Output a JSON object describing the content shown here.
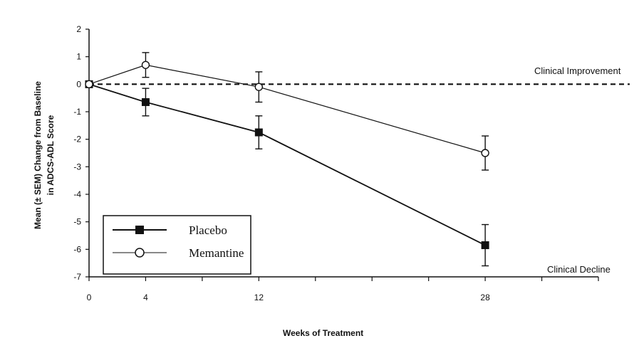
{
  "chart_data": {
    "type": "line",
    "xlabel": "Weeks of Treatment",
    "ylabel_line1": "Mean (± SEM) Change from Baseline",
    "ylabel_line2": "in ADCS-ADL Score",
    "x_ticks": [
      0,
      4,
      12,
      28
    ],
    "x_minor_ticks": [
      0,
      4,
      8,
      12,
      16,
      20,
      24,
      28,
      32,
      36
    ],
    "xlim": [
      0,
      36
    ],
    "ylim": [
      -7,
      2
    ],
    "y_ticks": [
      2,
      1,
      0,
      -1,
      -2,
      -3,
      -4,
      -5,
      -6,
      -7
    ],
    "series": [
      {
        "name": "Placebo",
        "marker": "filled-square",
        "x": [
          0,
          4,
          12,
          28
        ],
        "values": [
          0,
          -0.65,
          -1.75,
          -5.85
        ],
        "err": [
          0,
          0.5,
          0.6,
          0.75
        ]
      },
      {
        "name": "Memantine",
        "marker": "open-circle",
        "x": [
          0,
          4,
          12,
          28
        ],
        "values": [
          0,
          0.7,
          -0.1,
          -2.5
        ],
        "err": [
          0,
          0.45,
          0.55,
          0.62
        ]
      }
    ],
    "reference_line": {
      "y": 0,
      "style": "dashed"
    },
    "annotations": {
      "improvement": "Clinical Improvement",
      "decline": "Clinical Decline"
    },
    "legend": {
      "position": "bottom-left",
      "items": [
        "Placebo",
        "Memantine"
      ]
    },
    "colors": {
      "line": "#111111",
      "background": "#ffffff"
    }
  }
}
